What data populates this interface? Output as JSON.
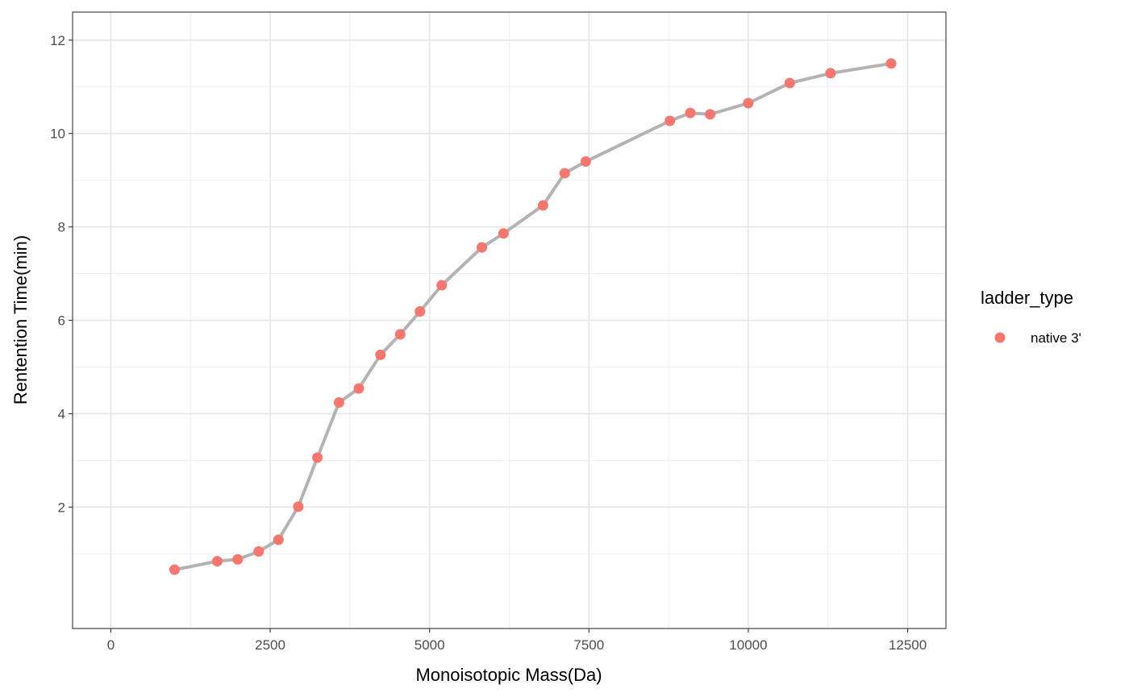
{
  "chart_data": {
    "type": "scatter",
    "xlabel": "Monoisotopic Mass(Da)",
    "ylabel": "Rentention Time(min)",
    "xlim": [
      -600,
      13100
    ],
    "ylim": [
      -0.6,
      12.6
    ],
    "x_ticks": [
      0,
      2500,
      5000,
      7500,
      10000,
      12500
    ],
    "x_tick_labels": [
      "0",
      "2500",
      "5000",
      "7500",
      "10000",
      "12500"
    ],
    "y_ticks": [
      2,
      4,
      6,
      8,
      10,
      12
    ],
    "y_tick_labels": [
      "2",
      "4",
      "6",
      "8",
      "10",
      "12"
    ],
    "grid": true,
    "legend": {
      "title": "ladder_type",
      "placement": "right",
      "entries": [
        "native 3'"
      ]
    },
    "series": [
      {
        "name": "native 3'",
        "color": "#F8766D",
        "line_color": "#B3B3B3",
        "x": [
          1000,
          1670,
          1990,
          2320,
          2630,
          2940,
          3240,
          3580,
          3890,
          4230,
          4540,
          4850,
          5190,
          5820,
          6160,
          6780,
          7120,
          7450,
          8770,
          9090,
          9400,
          10000,
          10650,
          11290,
          12240
        ],
        "y": [
          0.66,
          0.84,
          0.88,
          1.05,
          1.3,
          2.01,
          3.06,
          4.24,
          4.54,
          5.26,
          5.7,
          6.19,
          6.75,
          7.56,
          7.86,
          8.46,
          9.15,
          9.4,
          10.27,
          10.44,
          10.41,
          10.65,
          11.08,
          11.29,
          11.5
        ]
      }
    ]
  }
}
